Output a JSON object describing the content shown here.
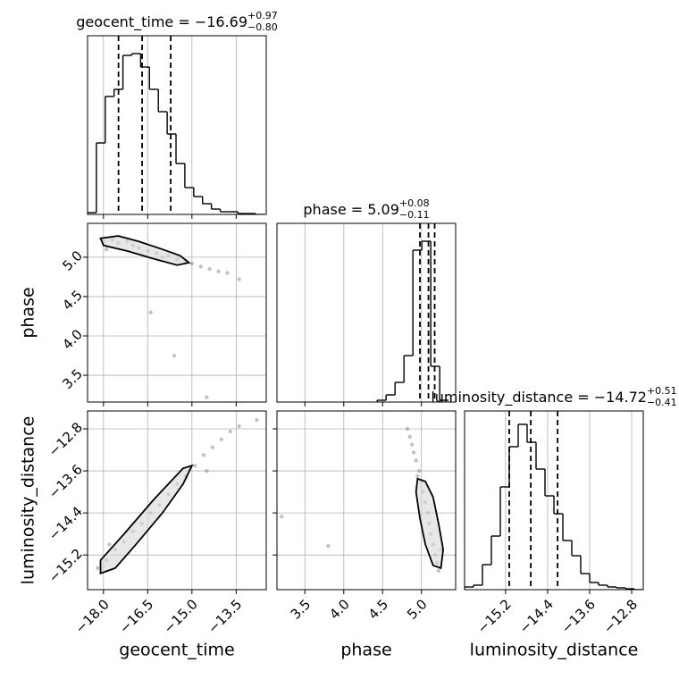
{
  "chart_data": [
    {
      "type": "histogram",
      "title": "geocent_time = −16.69",
      "title_upper": "+0.97",
      "title_lower": "−0.80",
      "bins": [
        -18.54,
        -18.24,
        -17.94,
        -17.64,
        -17.34,
        -17.04,
        -16.74,
        -16.44,
        -16.14,
        -15.84,
        -15.54,
        -15.24,
        -14.94,
        -14.64,
        -14.34,
        -14.04,
        -13.74,
        -13.44,
        -13.14,
        -12.84,
        -12.54
      ],
      "values": [
        2,
        80,
        132,
        140,
        178,
        180,
        165,
        140,
        115,
        90,
        57,
        30,
        20,
        12,
        6,
        3,
        3,
        1,
        1,
        0
      ],
      "quantiles": [
        -17.49,
        -16.69,
        -15.72
      ],
      "color": "#000000",
      "xlim": [
        -18.54,
        -12.48
      ],
      "ylim": [
        0,
        200
      ],
      "xticks": [
        {
          "value": -18,
          "label": "−18.0"
        },
        {
          "value": -16.5,
          "label": "−16.5"
        },
        {
          "value": -15,
          "label": "−15.0"
        },
        {
          "value": -13.5,
          "label": "−13.5"
        }
      ],
      "xtick_labels": false,
      "grid": true
    },
    {
      "type": "scatter",
      "ylabel": "phase",
      "x": [
        -18.0,
        -17.7,
        -17.5,
        -17.2,
        -17.0,
        -16.8,
        -16.5,
        -16.2,
        -16.0,
        -15.8,
        -15.5,
        -15.2,
        -15.0,
        -14.7,
        -14.4,
        -14.1,
        -13.8,
        -13.4,
        -17.9,
        -16.4,
        -15.6,
        -14.5
      ],
      "y": [
        5.2,
        5.22,
        5.18,
        5.2,
        5.15,
        5.12,
        5.08,
        5.05,
        5.0,
        5.02,
        4.97,
        4.95,
        4.92,
        4.88,
        4.85,
        4.82,
        4.8,
        4.72,
        5.1,
        4.3,
        3.75,
        3.22
      ],
      "contour": {
        "x": [
          -18.1,
          -17.5,
          -16.8,
          -16.0,
          -15.4,
          -15.1,
          -15.5,
          -16.3,
          -17.2,
          -18.0
        ],
        "y": [
          5.24,
          5.27,
          5.2,
          5.1,
          5.02,
          4.93,
          4.9,
          4.98,
          5.08,
          5.15
        ]
      },
      "color": "#888888",
      "xlim": [
        -18.54,
        -12.48
      ],
      "ylim": [
        3.16,
        5.43
      ],
      "xticks": [
        {
          "value": -18,
          "label": "−18.0"
        },
        {
          "value": -16.5,
          "label": "−16.5"
        },
        {
          "value": -15,
          "label": "−15.0"
        },
        {
          "value": -13.5,
          "label": "−13.5"
        }
      ],
      "yticks": [
        3.5,
        {
          "value": 4,
          "label": "4.0"
        },
        4.5,
        {
          "value": 5,
          "label": "5.0"
        }
      ],
      "xtick_labels": false,
      "ytick_labels": true,
      "grid": true
    },
    {
      "type": "histogram",
      "title": "phase = 5.09",
      "title_upper": "+0.08",
      "title_lower": "−0.11",
      "bins": [
        4.43,
        4.545,
        4.66,
        4.775,
        4.89,
        5.005,
        5.12,
        5.235,
        5.35
      ],
      "values": [
        2,
        8,
        22,
        52,
        170,
        180,
        40,
        2
      ],
      "quantiles": [
        4.98,
        5.09,
        5.17
      ],
      "color": "#000000",
      "xlim": [
        3.14,
        5.44
      ],
      "ylim": [
        0,
        200
      ],
      "xticks": [
        3.5,
        {
          "value": 4,
          "label": "4.0"
        },
        4.5,
        {
          "value": 5,
          "label": "5.0"
        }
      ],
      "xtick_labels": false,
      "grid": true
    },
    {
      "type": "scatter",
      "xlabel": "geocent_time",
      "ylabel": "luminosity_distance",
      "x": [
        -18.2,
        -17.9,
        -17.6,
        -17.3,
        -17.0,
        -16.7,
        -16.4,
        -16.1,
        -15.8,
        -15.5,
        -15.2,
        -14.9,
        -14.6,
        -14.3,
        -14.0,
        -13.7,
        -13.4,
        -12.8,
        -17.8,
        -14.5
      ],
      "y": [
        -15.45,
        -15.3,
        -15.1,
        -14.95,
        -14.75,
        -14.6,
        -14.4,
        -14.25,
        -14.05,
        -13.85,
        -13.7,
        -13.5,
        -13.3,
        -13.15,
        -13.0,
        -12.85,
        -12.75,
        -12.63,
        -15.0,
        -13.6
      ],
      "contour": {
        "x": [
          -18.1,
          -17.6,
          -16.9,
          -16.0,
          -15.3,
          -15.0,
          -15.3,
          -16.3,
          -17.3,
          -18.1
        ],
        "y": [
          -15.55,
          -15.45,
          -15.0,
          -14.4,
          -13.85,
          -13.5,
          -13.55,
          -14.15,
          -14.8,
          -15.3
        ]
      },
      "color": "#888888",
      "xlim": [
        -18.54,
        -12.48
      ],
      "ylim": [
        -15.86,
        -12.46
      ],
      "xticks": [
        {
          "value": -18,
          "label": "−18.0"
        },
        {
          "value": -16.5,
          "label": "−16.5"
        },
        {
          "value": -15,
          "label": "−15.0"
        },
        {
          "value": -13.5,
          "label": "−13.5"
        }
      ],
      "yticks": [
        {
          "value": -15.2,
          "label": "−15.2"
        },
        {
          "value": -14.4,
          "label": "−14.4"
        },
        {
          "value": -13.6,
          "label": "−13.6"
        },
        {
          "value": -12.8,
          "label": "−12.8"
        }
      ],
      "xtick_labels": true,
      "ytick_labels": true,
      "grid": true
    },
    {
      "type": "scatter",
      "xlabel": "phase",
      "x": [
        4.82,
        4.85,
        4.88,
        4.9,
        4.93,
        4.97,
        5.0,
        5.02,
        5.05,
        5.08,
        5.1,
        5.12,
        5.15,
        5.18,
        5.2,
        5.22,
        4.95,
        5.25,
        3.8,
        3.2
      ],
      "y": [
        -12.8,
        -12.95,
        -13.1,
        -13.25,
        -13.4,
        -13.6,
        -13.8,
        -14.0,
        -14.2,
        -14.4,
        -14.6,
        -14.8,
        -15.0,
        -15.2,
        -15.35,
        -15.5,
        -13.7,
        -15.1,
        -15.03,
        -14.47
      ],
      "contour": {
        "x": [
          4.95,
          5.05,
          5.15,
          5.22,
          5.28,
          5.25,
          5.15,
          5.05,
          4.98,
          4.93
        ],
        "y": [
          -13.75,
          -13.8,
          -14.1,
          -14.6,
          -15.1,
          -15.45,
          -15.4,
          -15.0,
          -14.5,
          -14.0
        ]
      },
      "color": "#888888",
      "xlim": [
        3.14,
        5.44
      ],
      "ylim": [
        -15.86,
        -12.46
      ],
      "xticks": [
        3.5,
        {
          "value": 4,
          "label": "4.0"
        },
        4.5,
        {
          "value": 5,
          "label": "5.0"
        }
      ],
      "yticks": [
        {
          "value": -15.2,
          "label": "−15.2"
        },
        {
          "value": -14.4,
          "label": "−14.4"
        },
        {
          "value": -13.6,
          "label": "−13.6"
        },
        {
          "value": -12.8,
          "label": "−12.8"
        }
      ],
      "xtick_labels": true,
      "ytick_labels": false,
      "grid": true
    },
    {
      "type": "histogram",
      "title": "luminosity_distance = −14.72",
      "title_upper": "+0.51",
      "title_lower": "−0.41",
      "xlabel": "luminosity_distance",
      "bins": [
        -15.98,
        -15.81,
        -15.64,
        -15.47,
        -15.3,
        -15.13,
        -14.96,
        -14.79,
        -14.62,
        -14.45,
        -14.28,
        -14.11,
        -13.94,
        -13.77,
        -13.6,
        -13.43,
        -13.26,
        -13.09,
        -12.92,
        -12.75,
        -12.58
      ],
      "values": [
        3,
        5,
        28,
        60,
        115,
        160,
        185,
        165,
        135,
        105,
        85,
        55,
        38,
        18,
        8,
        5,
        3,
        2,
        1,
        0
      ],
      "quantiles": [
        -15.13,
        -14.72,
        -14.21
      ],
      "color": "#000000",
      "xlim": [
        -15.98,
        -12.58
      ],
      "ylim": [
        0,
        200
      ],
      "xticks": [
        {
          "value": -15.2,
          "label": "−15.2"
        },
        {
          "value": -14.4,
          "label": "−14.4"
        },
        {
          "value": -13.6,
          "label": "−13.6"
        },
        {
          "value": -12.8,
          "label": "−12.8"
        }
      ],
      "xtick_labels": true,
      "grid": true
    }
  ]
}
